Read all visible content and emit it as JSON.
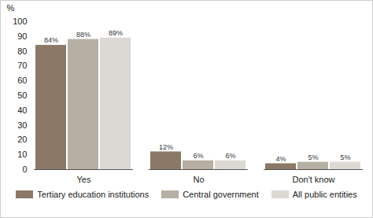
{
  "chart_data": {
    "type": "bar",
    "ylabel": "%",
    "categories": [
      "Yes",
      "No",
      "Don't know"
    ],
    "series": [
      {
        "name": "Tertiary education institutions",
        "color": "#8b7866",
        "values": [
          84,
          12,
          4
        ],
        "value_labels": [
          "84%",
          "12%",
          "4%"
        ]
      },
      {
        "name": "Central government",
        "color": "#b6afa3",
        "values": [
          88,
          6,
          5
        ],
        "value_labels": [
          "88%",
          "6%",
          "5%"
        ]
      },
      {
        "name": "All public entities",
        "color": "#dcd9d5",
        "values": [
          89,
          6,
          5
        ],
        "value_labels": [
          "89%",
          "6%",
          "5%"
        ]
      }
    ],
    "ylim": [
      0,
      100
    ],
    "yticks": [
      0,
      10,
      20,
      30,
      40,
      50,
      60,
      70,
      80,
      90,
      100
    ],
    "grid": false,
    "data_labels": true,
    "legend": "bottom"
  }
}
